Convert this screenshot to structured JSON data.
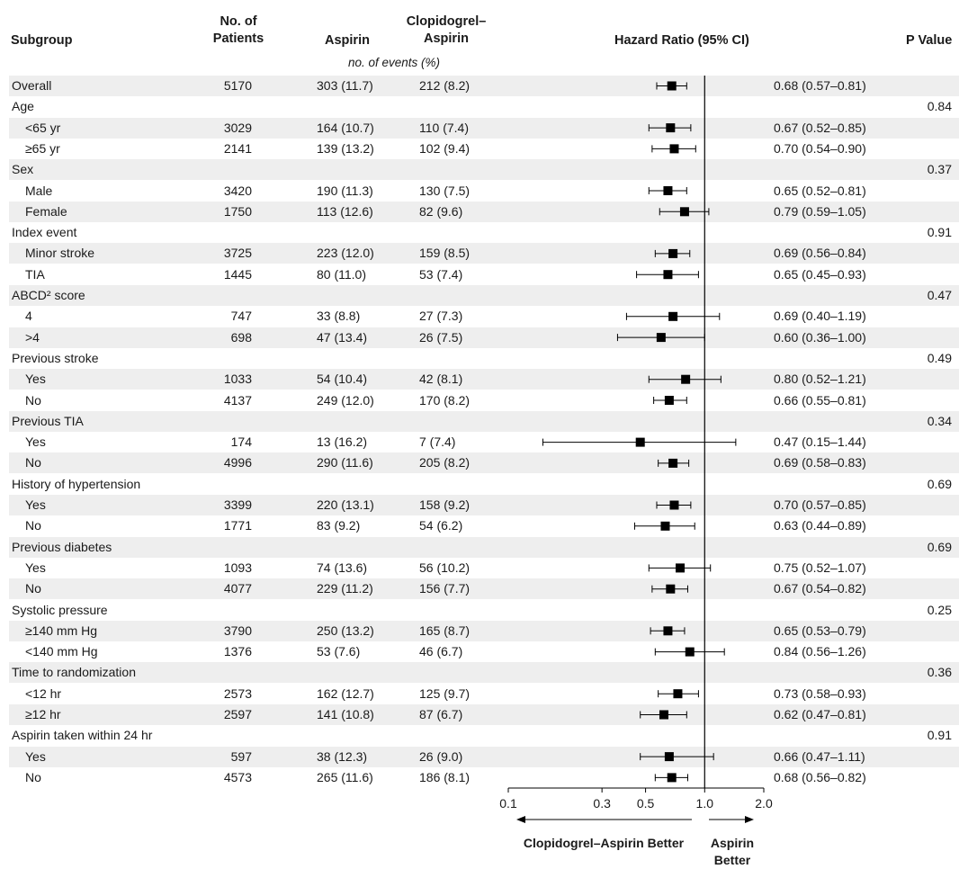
{
  "headers": {
    "subgroup": "Subgroup",
    "patients": "No. of\nPatients",
    "aspirin": "Aspirin",
    "clopidogrel": "Clopidogrel–\nAspirin",
    "hazard": "Hazard Ratio (95% CI)",
    "pvalue": "P Value",
    "events_note": "no. of events (%)"
  },
  "footer": {
    "left_label": "Clopidogrel–Aspirin Better",
    "right_label": "Aspirin\nBetter"
  },
  "colors": {
    "shade": "#eeeeee",
    "marker": "#000000"
  },
  "chart_data": {
    "type": "forest",
    "x_scale": "log",
    "reference_line": 1.0,
    "xlim": [
      0.1,
      2.0
    ],
    "x_ticks": [
      "0.1",
      "0.3",
      "0.5",
      "1.0",
      "2.0"
    ],
    "x_tick_values": [
      0.1,
      0.3,
      0.5,
      1.0,
      2.0
    ],
    "rows": [
      {
        "label": "Overall",
        "indent": false,
        "n": "5170",
        "aspirin": "303 (11.7)",
        "clopidogrel": "212 (8.2)",
        "hr_text": "0.68 (0.57–0.81)",
        "p": "",
        "hr": 0.68,
        "lo": 0.57,
        "hi": 0.81
      },
      {
        "label": "Age",
        "indent": false,
        "n": "",
        "aspirin": "",
        "clopidogrel": "",
        "hr_text": "",
        "p": "0.84"
      },
      {
        "label": "<65 yr",
        "indent": true,
        "n": "3029",
        "aspirin": "164 (10.7)",
        "clopidogrel": "110 (7.4)",
        "hr_text": "0.67 (0.52–0.85)",
        "p": "",
        "hr": 0.67,
        "lo": 0.52,
        "hi": 0.85
      },
      {
        "label": "≥65 yr",
        "indent": true,
        "n": "2141",
        "aspirin": "139 (13.2)",
        "clopidogrel": "102 (9.4)",
        "hr_text": "0.70 (0.54–0.90)",
        "p": "",
        "hr": 0.7,
        "lo": 0.54,
        "hi": 0.9
      },
      {
        "label": "Sex",
        "indent": false,
        "n": "",
        "aspirin": "",
        "clopidogrel": "",
        "hr_text": "",
        "p": "0.37"
      },
      {
        "label": "Male",
        "indent": true,
        "n": "3420",
        "aspirin": "190 (11.3)",
        "clopidogrel": "130 (7.5)",
        "hr_text": "0.65 (0.52–0.81)",
        "p": "",
        "hr": 0.65,
        "lo": 0.52,
        "hi": 0.81
      },
      {
        "label": "Female",
        "indent": true,
        "n": "1750",
        "aspirin": "113 (12.6)",
        "clopidogrel": "82 (9.6)",
        "hr_text": "0.79 (0.59–1.05)",
        "p": "",
        "hr": 0.79,
        "lo": 0.59,
        "hi": 1.05
      },
      {
        "label": "Index event",
        "indent": false,
        "n": "",
        "aspirin": "",
        "clopidogrel": "",
        "hr_text": "",
        "p": "0.91"
      },
      {
        "label": "Minor stroke",
        "indent": true,
        "n": "3725",
        "aspirin": "223 (12.0)",
        "clopidogrel": "159 (8.5)",
        "hr_text": "0.69 (0.56–0.84)",
        "p": "",
        "hr": 0.69,
        "lo": 0.56,
        "hi": 0.84
      },
      {
        "label": "TIA",
        "indent": true,
        "n": "1445",
        "aspirin": "80 (11.0)",
        "clopidogrel": "53 (7.4)",
        "hr_text": "0.65 (0.45–0.93)",
        "p": "",
        "hr": 0.65,
        "lo": 0.45,
        "hi": 0.93
      },
      {
        "label": "ABCD² score",
        "indent": false,
        "n": "",
        "aspirin": "",
        "clopidogrel": "",
        "hr_text": "",
        "p": "0.47"
      },
      {
        "label": "4",
        "indent": true,
        "n": "747",
        "aspirin": "33 (8.8)",
        "clopidogrel": "27 (7.3)",
        "hr_text": "0.69 (0.40–1.19)",
        "p": "",
        "hr": 0.69,
        "lo": 0.4,
        "hi": 1.19
      },
      {
        "label": ">4",
        "indent": true,
        "n": "698",
        "aspirin": "47 (13.4)",
        "clopidogrel": "26 (7.5)",
        "hr_text": "0.60 (0.36–1.00)",
        "p": "",
        "hr": 0.6,
        "lo": 0.36,
        "hi": 1.0
      },
      {
        "label": "Previous stroke",
        "indent": false,
        "n": "",
        "aspirin": "",
        "clopidogrel": "",
        "hr_text": "",
        "p": "0.49"
      },
      {
        "label": "Yes",
        "indent": true,
        "n": "1033",
        "aspirin": "54 (10.4)",
        "clopidogrel": "42 (8.1)",
        "hr_text": "0.80 (0.52–1.21)",
        "p": "",
        "hr": 0.8,
        "lo": 0.52,
        "hi": 1.21
      },
      {
        "label": "No",
        "indent": true,
        "n": "4137",
        "aspirin": "249 (12.0)",
        "clopidogrel": "170 (8.2)",
        "hr_text": "0.66 (0.55–0.81)",
        "p": "",
        "hr": 0.66,
        "lo": 0.55,
        "hi": 0.81
      },
      {
        "label": "Previous TIA",
        "indent": false,
        "n": "",
        "aspirin": "",
        "clopidogrel": "",
        "hr_text": "",
        "p": "0.34"
      },
      {
        "label": "Yes",
        "indent": true,
        "n": "174",
        "aspirin": "13 (16.2)",
        "clopidogrel": "7 (7.4)",
        "hr_text": "0.47 (0.15–1.44)",
        "p": "",
        "hr": 0.47,
        "lo": 0.15,
        "hi": 1.44
      },
      {
        "label": "No",
        "indent": true,
        "n": "4996",
        "aspirin": "290 (11.6)",
        "clopidogrel": "205 (8.2)",
        "hr_text": "0.69 (0.58–0.83)",
        "p": "",
        "hr": 0.69,
        "lo": 0.58,
        "hi": 0.83
      },
      {
        "label": "History of hypertension",
        "indent": false,
        "n": "",
        "aspirin": "",
        "clopidogrel": "",
        "hr_text": "",
        "p": "0.69"
      },
      {
        "label": "Yes",
        "indent": true,
        "n": "3399",
        "aspirin": "220 (13.1)",
        "clopidogrel": "158 (9.2)",
        "hr_text": "0.70 (0.57–0.85)",
        "p": "",
        "hr": 0.7,
        "lo": 0.57,
        "hi": 0.85
      },
      {
        "label": "No",
        "indent": true,
        "n": "1771",
        "aspirin": "83 (9.2)",
        "clopidogrel": "54 (6.2)",
        "hr_text": "0.63 (0.44–0.89)",
        "p": "",
        "hr": 0.63,
        "lo": 0.44,
        "hi": 0.89
      },
      {
        "label": "Previous diabetes",
        "indent": false,
        "n": "",
        "aspirin": "",
        "clopidogrel": "",
        "hr_text": "",
        "p": "0.69"
      },
      {
        "label": "Yes",
        "indent": true,
        "n": "1093",
        "aspirin": "74 (13.6)",
        "clopidogrel": "56 (10.2)",
        "hr_text": "0.75 (0.52–1.07)",
        "p": "",
        "hr": 0.75,
        "lo": 0.52,
        "hi": 1.07
      },
      {
        "label": "No",
        "indent": true,
        "n": "4077",
        "aspirin": "229 (11.2)",
        "clopidogrel": "156 (7.7)",
        "hr_text": "0.67 (0.54–0.82)",
        "p": "",
        "hr": 0.67,
        "lo": 0.54,
        "hi": 0.82
      },
      {
        "label": "Systolic pressure",
        "indent": false,
        "n": "",
        "aspirin": "",
        "clopidogrel": "",
        "hr_text": "",
        "p": "0.25"
      },
      {
        "label": "≥140 mm Hg",
        "indent": true,
        "n": "3790",
        "aspirin": "250 (13.2)",
        "clopidogrel": "165 (8.7)",
        "hr_text": "0.65 (0.53–0.79)",
        "p": "",
        "hr": 0.65,
        "lo": 0.53,
        "hi": 0.79
      },
      {
        "label": "<140 mm Hg",
        "indent": true,
        "n": "1376",
        "aspirin": "53 (7.6)",
        "clopidogrel": "46 (6.7)",
        "hr_text": "0.84 (0.56–1.26)",
        "p": "",
        "hr": 0.84,
        "lo": 0.56,
        "hi": 1.26
      },
      {
        "label": "Time to randomization",
        "indent": false,
        "n": "",
        "aspirin": "",
        "clopidogrel": "",
        "hr_text": "",
        "p": "0.36"
      },
      {
        "label": "<12 hr",
        "indent": true,
        "n": "2573",
        "aspirin": "162 (12.7)",
        "clopidogrel": "125 (9.7)",
        "hr_text": "0.73 (0.58–0.93)",
        "p": "",
        "hr": 0.73,
        "lo": 0.58,
        "hi": 0.93
      },
      {
        "label": "≥12 hr",
        "indent": true,
        "n": "2597",
        "aspirin": "141 (10.8)",
        "clopidogrel": "87 (6.7)",
        "hr_text": "0.62 (0.47–0.81)",
        "p": "",
        "hr": 0.62,
        "lo": 0.47,
        "hi": 0.81
      },
      {
        "label": "Aspirin taken within 24 hr",
        "indent": false,
        "n": "",
        "aspirin": "",
        "clopidogrel": "",
        "hr_text": "",
        "p": "0.91"
      },
      {
        "label": "Yes",
        "indent": true,
        "n": "597",
        "aspirin": "38 (12.3)",
        "clopidogrel": "26 (9.0)",
        "hr_text": "0.66 (0.47–1.11)",
        "p": "",
        "hr": 0.66,
        "lo": 0.47,
        "hi": 1.11
      },
      {
        "label": "No",
        "indent": true,
        "n": "4573",
        "aspirin": "265 (11.6)",
        "clopidogrel": "186 (8.1)",
        "hr_text": "0.68 (0.56–0.82)",
        "p": "",
        "hr": 0.68,
        "lo": 0.56,
        "hi": 0.82
      }
    ]
  }
}
